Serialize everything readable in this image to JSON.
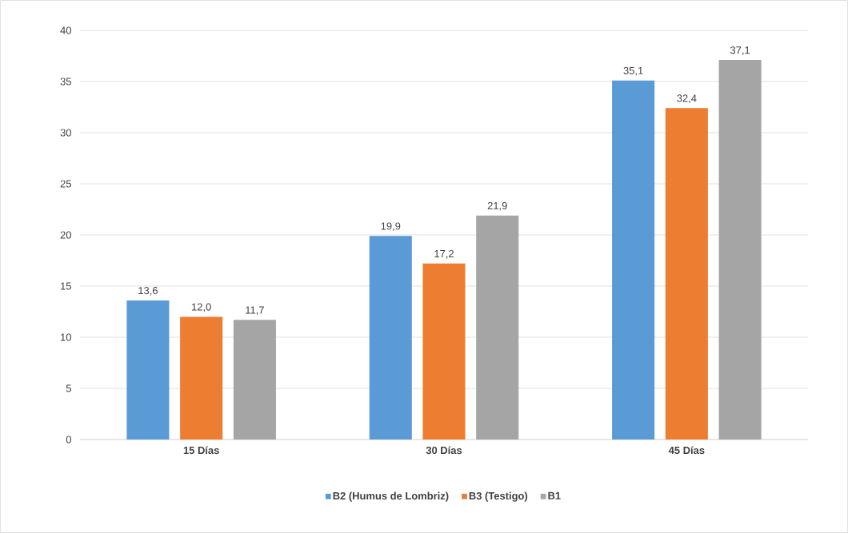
{
  "chart_data": {
    "type": "bar",
    "categories": [
      "15 Días",
      "30 Días",
      "45 Días"
    ],
    "series": [
      {
        "name": "B2 (Humus de Lombriz)",
        "color": "#5b9bd5",
        "values": [
          13.6,
          19.9,
          35.1
        ],
        "value_labels": [
          "13,6",
          "19,9",
          "35,1"
        ]
      },
      {
        "name": "B3 (Testigo)",
        "color": "#ed7d31",
        "values": [
          12.0,
          17.2,
          32.4
        ],
        "value_labels": [
          "12,0",
          "17,2",
          "32,4"
        ]
      },
      {
        "name": "B1",
        "color": "#a5a5a5",
        "values": [
          11.7,
          21.9,
          37.1
        ],
        "value_labels": [
          "11,7",
          "21,9",
          "37,1"
        ]
      }
    ],
    "ylim": [
      0,
      40
    ],
    "yticks": [
      0,
      5,
      10,
      15,
      20,
      25,
      30,
      35,
      40
    ],
    "grid": "y",
    "legend": "bottom"
  }
}
